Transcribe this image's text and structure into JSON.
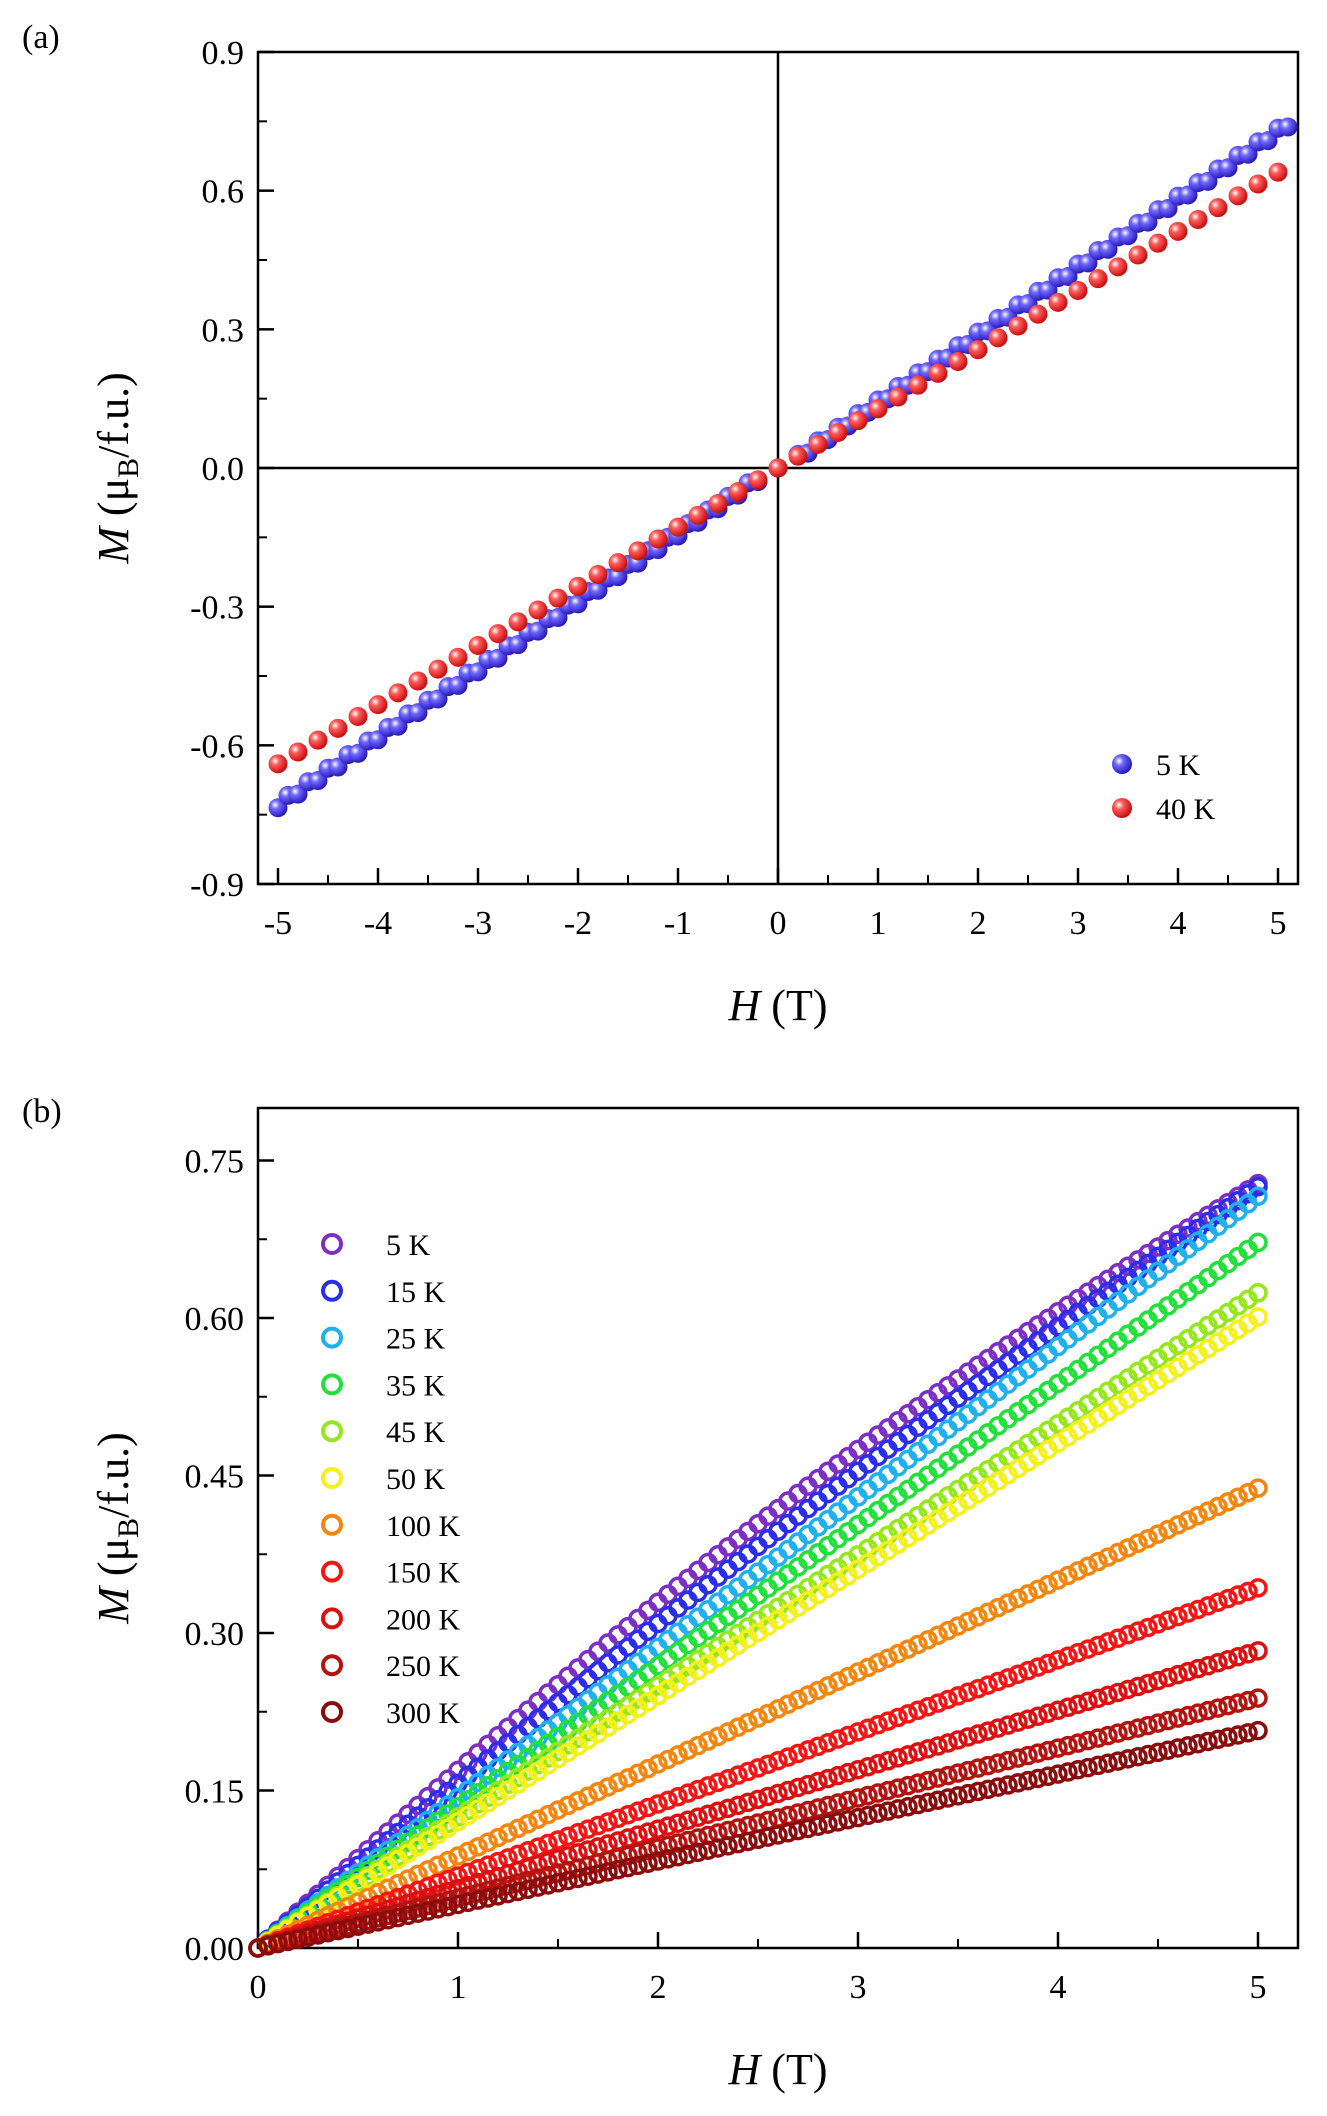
{
  "chart_data": [
    {
      "panel_label": "(a)",
      "type": "scatter",
      "xlabel": {
        "var": "H",
        "unit": " (T)"
      },
      "ylabel": {
        "var": "M",
        "unit_pre": " (μ",
        "unit_sub": "B",
        "unit_post": "/f.u.)"
      },
      "xlim": [
        -5.2,
        5.2
      ],
      "ylim": [
        -0.9,
        0.9
      ],
      "xticks": [
        -5,
        -4,
        -3,
        -2,
        -1,
        0,
        1,
        2,
        3,
        4,
        5
      ],
      "xtick_labels": [
        "-5",
        "-4",
        "-3",
        "-2",
        "-1",
        "0",
        "1",
        "2",
        "3",
        "4",
        "5"
      ],
      "yticks": [
        -0.9,
        -0.6,
        -0.3,
        0.0,
        0.3,
        0.6,
        0.9
      ],
      "ytick_labels": [
        "-0.9",
        "-0.6",
        "-0.3",
        "0.0",
        "0.3",
        "0.6",
        "0.9"
      ],
      "zero_lines": true,
      "legend_position": "bottom-right",
      "series": [
        {
          "name": "5 K",
          "label": "5 K",
          "color": "#3a2bd6",
          "marker": "filled-sphere",
          "x_range": [
            -5,
            5
          ],
          "x_step": 0.2,
          "slope": 0.147,
          "hysteresis": true
        },
        {
          "name": "40 K",
          "label": "40 K",
          "color": "#e81e1e",
          "marker": "filled-sphere",
          "x_range": [
            -5,
            5
          ],
          "x_step": 0.2,
          "slope": 0.128,
          "hysteresis": false
        }
      ]
    },
    {
      "panel_label": "(b)",
      "type": "scatter",
      "xlabel": {
        "var": "H",
        "unit": " (T)"
      },
      "ylabel": {
        "var": "M",
        "unit_pre": " (μ",
        "unit_sub": "B",
        "unit_post": "/f.u.)"
      },
      "xlim": [
        0,
        5.2
      ],
      "ylim": [
        0,
        0.8
      ],
      "xticks": [
        0,
        1,
        2,
        3,
        4,
        5
      ],
      "xtick_labels": [
        "0",
        "1",
        "2",
        "3",
        "4",
        "5"
      ],
      "yticks": [
        0.0,
        0.15,
        0.3,
        0.45,
        0.6,
        0.75
      ],
      "ytick_labels": [
        "0.00",
        "0.15",
        "0.30",
        "0.45",
        "0.60",
        "0.75"
      ],
      "legend_position": "top-left",
      "series": [
        {
          "name": "5 K",
          "label": "5 K",
          "color": "#7b2fc4",
          "marker": "open-circle",
          "x_range": [
            0,
            5
          ],
          "x_step": 0.05,
          "m_at_5T": 0.728,
          "curvature": 0.04
        },
        {
          "name": "15 K",
          "label": "15 K",
          "color": "#2a2ee8",
          "marker": "open-circle",
          "x_range": [
            0,
            5
          ],
          "x_step": 0.05,
          "m_at_5T": 0.725,
          "curvature": 0.02
        },
        {
          "name": "25 K",
          "label": "25 K",
          "color": "#1fb0ee",
          "marker": "open-circle",
          "x_range": [
            0,
            5
          ],
          "x_step": 0.05,
          "m_at_5T": 0.716,
          "curvature": 0.0
        },
        {
          "name": "35 K",
          "label": "35 K",
          "color": "#22e03a",
          "marker": "open-circle",
          "x_range": [
            0,
            5
          ],
          "x_step": 0.05,
          "m_at_5T": 0.672,
          "curvature": 0.0
        },
        {
          "name": "45 K",
          "label": "45 K",
          "color": "#96e61c",
          "marker": "open-circle",
          "x_range": [
            0,
            5
          ],
          "x_step": 0.05,
          "m_at_5T": 0.624,
          "curvature": 0.0
        },
        {
          "name": "50 K",
          "label": "50 K",
          "color": "#f3f01a",
          "marker": "open-circle",
          "x_range": [
            0,
            5
          ],
          "x_step": 0.05,
          "m_at_5T": 0.601,
          "curvature": 0.0
        },
        {
          "name": "100 K",
          "label": "100 K",
          "color": "#f3860e",
          "marker": "open-circle",
          "x_range": [
            0,
            5
          ],
          "x_step": 0.05,
          "m_at_5T": 0.438,
          "curvature": 0.0
        },
        {
          "name": "150 K",
          "label": "150 K",
          "color": "#f41515",
          "marker": "open-circle",
          "x_range": [
            0,
            5
          ],
          "x_step": 0.05,
          "m_at_5T": 0.343,
          "curvature": 0.0
        },
        {
          "name": "200 K",
          "label": "200 K",
          "color": "#dc1010",
          "marker": "open-circle",
          "x_range": [
            0,
            5
          ],
          "x_step": 0.05,
          "m_at_5T": 0.283,
          "curvature": 0.0
        },
        {
          "name": "250 K",
          "label": "250 K",
          "color": "#b3140f",
          "marker": "open-circle",
          "x_range": [
            0,
            5
          ],
          "x_step": 0.05,
          "m_at_5T": 0.238,
          "curvature": 0.0
        },
        {
          "name": "300 K",
          "label": "300 K",
          "color": "#8a0c0c",
          "marker": "open-circle",
          "x_range": [
            0,
            5
          ],
          "x_step": 0.05,
          "m_at_5T": 0.207,
          "curvature": 0.0
        }
      ]
    }
  ]
}
